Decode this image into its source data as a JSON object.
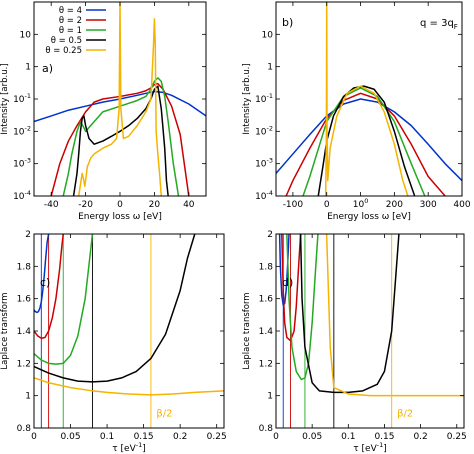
{
  "chart_data": [
    {
      "type": "line",
      "panel_label": "a)",
      "xlabel": "Energy loss ω [eV]",
      "ylabel": "Intensity [arb.u.]",
      "xlim": [
        -50,
        50
      ],
      "ylim": [
        0.0001,
        100
      ],
      "yscale": "log",
      "xticks": [
        "-40",
        "-20",
        "0",
        "20",
        "40"
      ],
      "yticks": [
        "10",
        "1",
        "10-1",
        "10-2",
        "10-3",
        "10-4"
      ],
      "legend_position": "top-left",
      "series": [
        {
          "name": "θ = 4",
          "color": "#0033cc",
          "x": [
            -50,
            -40,
            -30,
            -20,
            -10,
            0,
            10,
            15,
            20,
            25,
            30,
            40,
            50
          ],
          "y": [
            0.02,
            0.03,
            0.045,
            0.06,
            0.08,
            0.1,
            0.13,
            0.15,
            0.17,
            0.16,
            0.13,
            0.07,
            0.03
          ]
        },
        {
          "name": "θ = 2",
          "color": "#cc0000",
          "x": [
            -40,
            -35,
            -30,
            -25,
            -20,
            -15,
            -10,
            0,
            10,
            15,
            18,
            20,
            22,
            25,
            30,
            35,
            40
          ],
          "y": [
            0.0001,
            0.001,
            0.005,
            0.015,
            0.04,
            0.08,
            0.1,
            0.12,
            0.15,
            0.18,
            0.22,
            0.28,
            0.3,
            0.2,
            0.06,
            0.008,
            0.0001
          ]
        },
        {
          "name": "θ = 1",
          "color": "#22aa22",
          "x": [
            -33,
            -30,
            -28,
            -25,
            -23,
            -21,
            -20,
            -15,
            -10,
            0,
            10,
            15,
            18,
            20,
            22,
            24,
            26,
            28,
            31,
            34
          ],
          "y": [
            0.0001,
            0.0005,
            0.002,
            0.01,
            0.02,
            0.013,
            0.01,
            0.02,
            0.04,
            0.06,
            0.09,
            0.12,
            0.2,
            0.35,
            0.45,
            0.35,
            0.12,
            0.02,
            0.001,
            0.0001
          ]
        },
        {
          "name": "θ = 0.5",
          "color": "#000000",
          "x": [
            -27,
            -25,
            -24,
            -23,
            -22,
            -21,
            -20,
            -18,
            -15,
            -10,
            -5,
            0,
            5,
            10,
            15,
            18,
            20,
            22,
            24,
            26,
            27,
            28
          ],
          "y": [
            0.0001,
            0.0005,
            0.002,
            0.01,
            0.025,
            0.03,
            0.015,
            0.006,
            0.004,
            0.005,
            0.007,
            0.01,
            0.015,
            0.025,
            0.05,
            0.1,
            0.2,
            0.25,
            0.05,
            0.003,
            0.0003,
            0.0001
          ]
        },
        {
          "name": "θ = 0.25",
          "color": "#f4b400",
          "x": [
            -24,
            -22,
            -21,
            -20.5,
            -20,
            -19,
            -17,
            -15,
            -10,
            -5,
            -2,
            -0.5,
            0,
            0.5,
            2,
            5,
            10,
            15,
            18,
            19.5,
            20,
            20.5,
            21,
            22,
            23,
            24
          ],
          "y": [
            0.0001,
            0.0005,
            0.0003,
            0.0002,
            0.0003,
            0.0008,
            0.0015,
            0.002,
            0.003,
            0.004,
            0.006,
            0.05,
            100,
            0.05,
            0.006,
            0.007,
            0.015,
            0.04,
            0.1,
            5,
            30,
            5,
            0.01,
            0.002,
            0.0005,
            0.0001
          ]
        }
      ]
    },
    {
      "type": "line",
      "panel_label": "b)",
      "annotation": "q = 3q",
      "annotation_sub": "F",
      "xlabel": "Energy loss ω [eV]",
      "ylabel": "Intensity [arb.u.]",
      "xlim": [
        -150,
        400
      ],
      "ylim": [
        0.0001,
        100
      ],
      "yscale": "log",
      "xticks": [
        "-100",
        "0",
        "100",
        "200",
        "300",
        "400"
      ],
      "yticks": [
        "10",
        "1",
        "10-1",
        "10-2",
        "10-3",
        "10-4"
      ],
      "series": [
        {
          "name": "θ = 4",
          "color": "#0033cc",
          "x": [
            -150,
            -100,
            -50,
            0,
            50,
            100,
            150,
            200,
            250,
            300,
            350,
            400
          ],
          "y": [
            0.0005,
            0.002,
            0.008,
            0.03,
            0.07,
            0.1,
            0.08,
            0.04,
            0.015,
            0.004,
            0.001,
            0.0003
          ]
        },
        {
          "name": "θ = 2",
          "color": "#cc0000",
          "x": [
            -120,
            -100,
            -50,
            0,
            50,
            100,
            150,
            200,
            250,
            300,
            350
          ],
          "y": [
            0.0001,
            0.0003,
            0.003,
            0.025,
            0.09,
            0.15,
            0.1,
            0.03,
            0.004,
            0.0004,
            0.0001
          ]
        },
        {
          "name": "θ = 1",
          "color": "#22aa22",
          "x": [
            -70,
            -50,
            0,
            50,
            100,
            150,
            200,
            250,
            290
          ],
          "y": [
            0.0001,
            0.0004,
            0.02,
            0.12,
            0.22,
            0.12,
            0.02,
            0.001,
            0.0001
          ]
        },
        {
          "name": "θ = 0.5",
          "color": "#000000",
          "x": [
            -25,
            -10,
            0,
            20,
            50,
            80,
            110,
            140,
            170,
            200,
            230,
            260
          ],
          "y": [
            0.0001,
            0.001,
            0.005,
            0.03,
            0.12,
            0.22,
            0.25,
            0.2,
            0.08,
            0.01,
            0.0008,
            0.0001
          ]
        },
        {
          "name": "θ = 0.25",
          "color": "#f4b400",
          "x": [
            -3,
            -1,
            0,
            1,
            3,
            10,
            30,
            60,
            100,
            140,
            170,
            200,
            225,
            240
          ],
          "y": [
            0.0001,
            0.01,
            100,
            0.01,
            0.0003,
            0.003,
            0.03,
            0.15,
            0.25,
            0.15,
            0.04,
            0.004,
            0.0003,
            0.0001
          ]
        }
      ]
    },
    {
      "type": "line",
      "panel_label": "c)",
      "xlabel": "τ [eV-1]",
      "ylabel": "Laplace transform",
      "xlim": [
        0,
        0.26
      ],
      "ylim": [
        0.8,
        2
      ],
      "xticks": [
        "0",
        "0.05",
        "0.1",
        "0.15",
        "0.2",
        "0.25"
      ],
      "yticks": [
        "0.8",
        "1",
        "1.2",
        "1.4",
        "1.6",
        "1.8",
        "2"
      ],
      "annotation": "β/2",
      "vlines": [
        {
          "x": 0.01,
          "color": "#0033cc"
        },
        {
          "x": 0.02,
          "color": "#cc0000"
        },
        {
          "x": 0.04,
          "color": "#22aa22"
        },
        {
          "x": 0.08,
          "color": "#000000"
        },
        {
          "x": 0.16,
          "color": "#f4b400"
        }
      ],
      "series": [
        {
          "name": "θ = 4",
          "color": "#0033cc",
          "x": [
            0,
            0.002,
            0.004,
            0.006,
            0.008,
            0.01,
            0.012,
            0.014,
            0.016,
            0.018,
            0.02
          ],
          "y": [
            1.53,
            1.52,
            1.515,
            1.52,
            1.54,
            1.58,
            1.65,
            1.74,
            1.85,
            1.95,
            2.0
          ]
        },
        {
          "name": "θ = 2",
          "color": "#cc0000",
          "x": [
            0,
            0.005,
            0.01,
            0.015,
            0.02,
            0.025,
            0.03,
            0.035,
            0.038,
            0.04
          ],
          "y": [
            1.4,
            1.37,
            1.355,
            1.36,
            1.4,
            1.48,
            1.6,
            1.78,
            1.92,
            2.0
          ]
        },
        {
          "name": "θ = 1",
          "color": "#22aa22",
          "x": [
            0,
            0.01,
            0.02,
            0.03,
            0.04,
            0.05,
            0.06,
            0.07,
            0.075,
            0.08
          ],
          "y": [
            1.26,
            1.22,
            1.2,
            1.195,
            1.2,
            1.25,
            1.37,
            1.6,
            1.8,
            2.0
          ]
        },
        {
          "name": "θ = 0.5",
          "color": "#000000",
          "x": [
            0,
            0.02,
            0.04,
            0.06,
            0.08,
            0.1,
            0.12,
            0.14,
            0.16,
            0.18,
            0.2,
            0.21,
            0.22
          ],
          "y": [
            1.18,
            1.14,
            1.11,
            1.09,
            1.085,
            1.09,
            1.11,
            1.15,
            1.23,
            1.38,
            1.65,
            1.85,
            2.0
          ]
        },
        {
          "name": "θ = 0.25",
          "color": "#f4b400",
          "x": [
            0,
            0.02,
            0.05,
            0.08,
            0.1,
            0.13,
            0.16,
            0.19,
            0.22,
            0.26
          ],
          "y": [
            1.11,
            1.08,
            1.05,
            1.03,
            1.02,
            1.01,
            1.005,
            1.01,
            1.02,
            1.03
          ]
        }
      ]
    },
    {
      "type": "line",
      "panel_label": "d)",
      "xlabel": "τ [eV-1]",
      "ylabel": "Laplace transform",
      "xlim": [
        0,
        0.26
      ],
      "ylim": [
        0.8,
        2
      ],
      "xticks": [
        "0",
        "0.05",
        "0.1",
        "0.15",
        "0.2",
        "0.25"
      ],
      "yticks": [
        "0.8",
        "1",
        "1.2",
        "1.4",
        "1.6",
        "1.8",
        "2"
      ],
      "annotation": "β/2",
      "vlines": [
        {
          "x": 0.01,
          "color": "#0033cc"
        },
        {
          "x": 0.02,
          "color": "#cc0000"
        },
        {
          "x": 0.04,
          "color": "#22aa22"
        },
        {
          "x": 0.08,
          "color": "#000000"
        },
        {
          "x": 0.16,
          "color": "#f4b400"
        }
      ],
      "series": [
        {
          "name": "θ = 4",
          "color": "#0033cc",
          "x": [
            0.005,
            0.006,
            0.008,
            0.01,
            0.012,
            0.014,
            0.016,
            0.018
          ],
          "y": [
            2.0,
            1.8,
            1.62,
            1.56,
            1.57,
            1.65,
            1.8,
            2.0
          ]
        },
        {
          "name": "θ = 2",
          "color": "#cc0000",
          "x": [
            0.008,
            0.01,
            0.012,
            0.015,
            0.02,
            0.025,
            0.028,
            0.031,
            0.034
          ],
          "y": [
            2.0,
            1.65,
            1.45,
            1.36,
            1.34,
            1.4,
            1.55,
            1.78,
            2.0
          ]
        },
        {
          "name": "θ = 1",
          "color": "#22aa22",
          "x": [
            0.015,
            0.018,
            0.022,
            0.028,
            0.035,
            0.04,
            0.045,
            0.05,
            0.055,
            0.058
          ],
          "y": [
            2.0,
            1.6,
            1.3,
            1.15,
            1.1,
            1.11,
            1.2,
            1.45,
            1.8,
            2.0
          ]
        },
        {
          "name": "θ = 0.5",
          "color": "#000000",
          "x": [
            0.034,
            0.036,
            0.04,
            0.05,
            0.06,
            0.08,
            0.1,
            0.12,
            0.14,
            0.15,
            0.16,
            0.165,
            0.17
          ],
          "y": [
            2.0,
            1.6,
            1.3,
            1.08,
            1.03,
            1.02,
            1.02,
            1.03,
            1.07,
            1.15,
            1.4,
            1.7,
            2.0
          ]
        },
        {
          "name": "θ = 0.25",
          "color": "#f4b400",
          "x": [
            0.07,
            0.075,
            0.08,
            0.1,
            0.13,
            0.16,
            0.2,
            0.26
          ],
          "y": [
            2.0,
            1.3,
            1.05,
            1.01,
            1.0,
            1.0,
            1.0,
            1.0
          ]
        }
      ]
    }
  ]
}
